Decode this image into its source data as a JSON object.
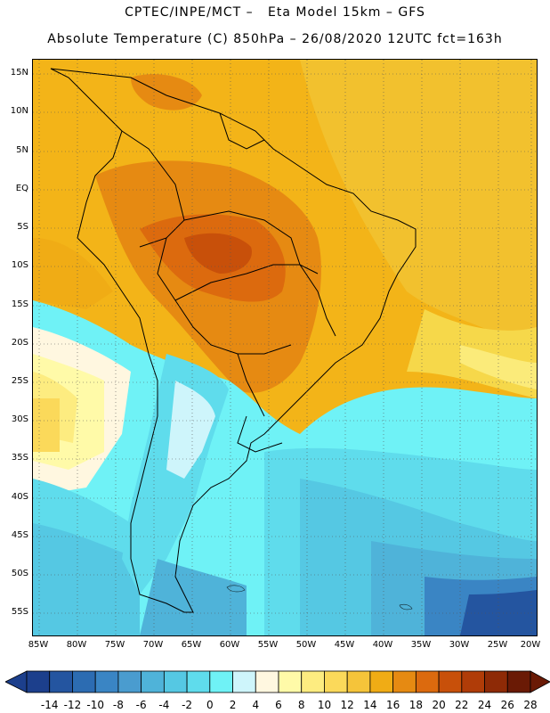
{
  "header": {
    "line1": "CPTEC/INPE/MCT –   Eta Model 15km – GFS",
    "line2": "Absolute Temperature (C) 850hPa – 26/08/2020 12UTC fct=163h"
  },
  "map": {
    "lat_labels": [
      "15N",
      "10N",
      "5N",
      "EQ",
      "5S",
      "10S",
      "15S",
      "20S",
      "25S",
      "30S",
      "35S",
      "40S",
      "45S",
      "50S",
      "55S"
    ],
    "lon_labels": [
      "85W",
      "80W",
      "75W",
      "70W",
      "65W",
      "60W",
      "55W",
      "50W",
      "45W",
      "40W",
      "35W",
      "30W",
      "25W",
      "20W"
    ],
    "gridlines": "dotted"
  },
  "colorbar": {
    "labels": [
      "-14",
      "-12",
      "-10",
      "-8",
      "-6",
      "-4",
      "-2",
      "0",
      "2",
      "4",
      "6",
      "8",
      "10",
      "12",
      "14",
      "16",
      "18",
      "20",
      "22",
      "24",
      "26",
      "28"
    ],
    "colors": [
      "#1c3f8c",
      "#2455a0",
      "#2c6cb2",
      "#3a85c4",
      "#4a9ccf",
      "#4fb3d9",
      "#55c8e3",
      "#5fdcec",
      "#6ff2f6",
      "#cef5fb",
      "#fff7e0",
      "#fffaa8",
      "#fdec80",
      "#fbd95a",
      "#f5c43a",
      "#f0ac15",
      "#e68a12",
      "#dc6a0e",
      "#c8500a",
      "#b03c08",
      "#8e2a06",
      "#6a1a05"
    ]
  }
}
